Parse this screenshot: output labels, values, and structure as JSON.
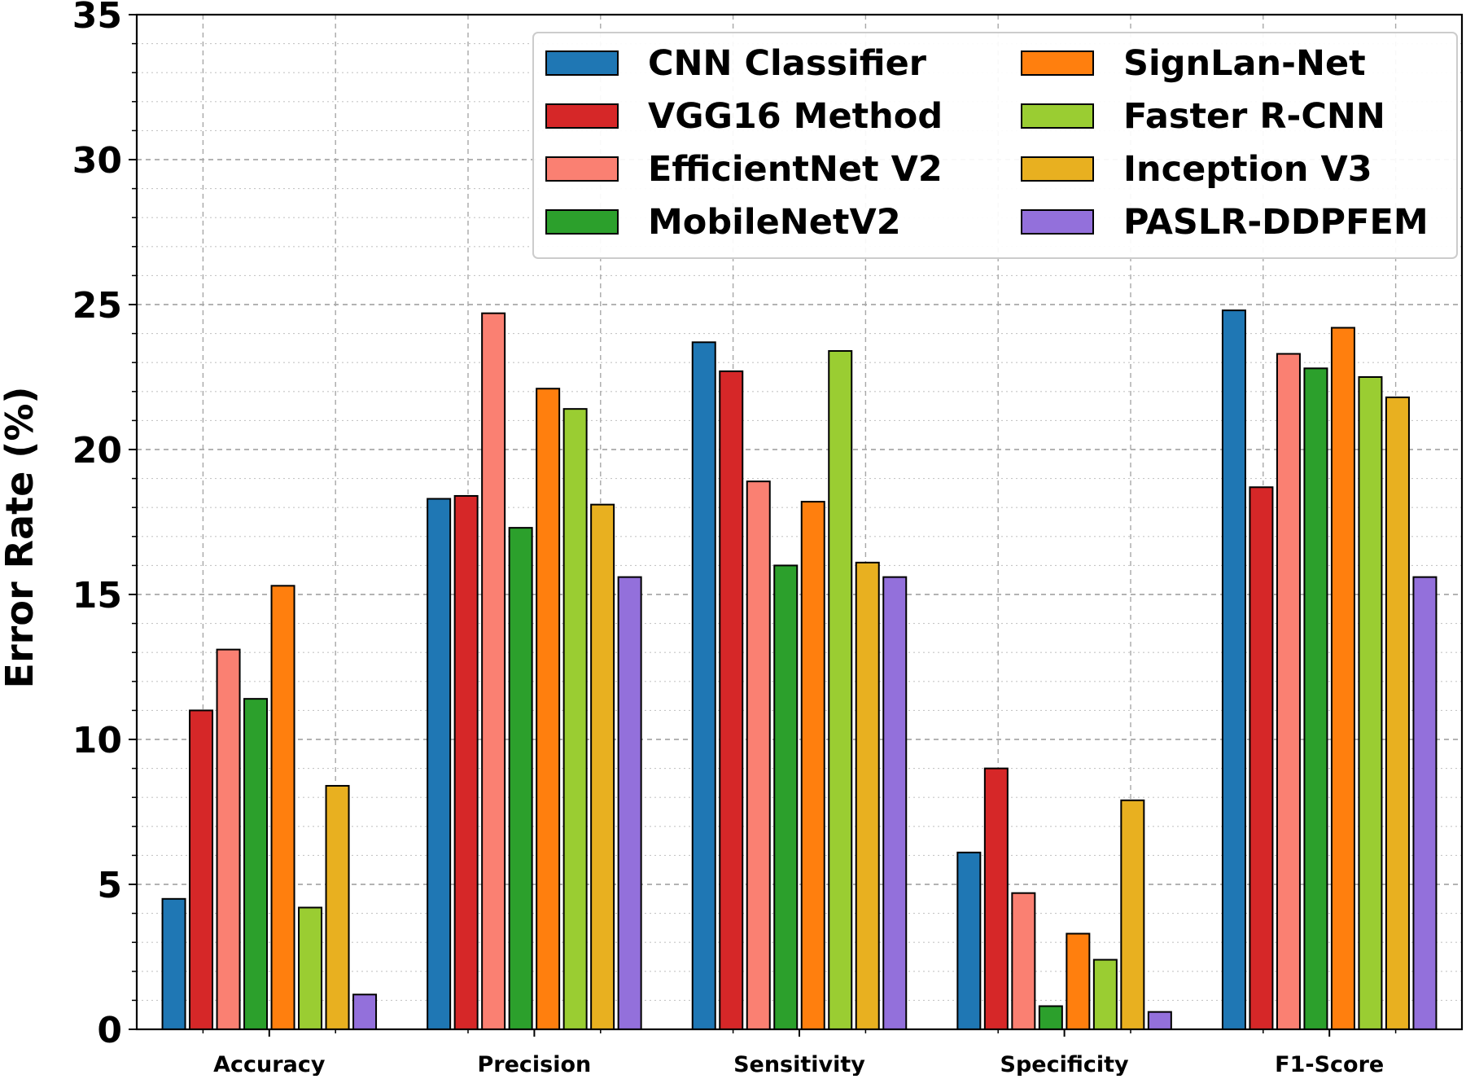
{
  "chart_data": {
    "type": "bar",
    "title": "",
    "xlabel": "",
    "ylabel": "Error Rate (%)",
    "ylim": [
      0,
      35
    ],
    "yticks": [
      "0",
      "5",
      "10",
      "15",
      "20",
      "25",
      "30",
      "35"
    ],
    "grid": true,
    "legend_position": "top-right",
    "categories": [
      "Accuracy",
      "Precision",
      "Sensitivity",
      "Specificity",
      "F1-Score"
    ],
    "series": [
      {
        "name": "CNN Classifier",
        "color": "#1f77b4",
        "values": [
          4.5,
          18.3,
          23.7,
          6.1,
          24.8
        ]
      },
      {
        "name": "VGG16 Method",
        "color": "#d62728",
        "values": [
          11.0,
          18.4,
          22.7,
          9.0,
          18.7
        ]
      },
      {
        "name": "EfficientNet V2",
        "color": "#fa8072",
        "values": [
          13.1,
          24.7,
          18.9,
          4.7,
          23.3
        ]
      },
      {
        "name": "MobileNetV2",
        "color": "#2ca02c",
        "values": [
          11.4,
          17.3,
          16.0,
          0.8,
          22.8
        ]
      },
      {
        "name": "SignLan-Net",
        "color": "#ff7f0e",
        "values": [
          15.3,
          22.1,
          18.2,
          3.3,
          24.2
        ]
      },
      {
        "name": "Faster R-CNN",
        "color": "#9acd32",
        "values": [
          4.2,
          21.4,
          23.4,
          2.4,
          22.5
        ]
      },
      {
        "name": "Inception V3",
        "color": "#e8b020",
        "values": [
          8.4,
          18.1,
          16.1,
          7.9,
          21.8
        ]
      },
      {
        "name": "PASLR-DDPFEM",
        "color": "#9370db",
        "values": [
          1.2,
          15.6,
          15.6,
          0.6,
          15.6
        ]
      }
    ]
  }
}
